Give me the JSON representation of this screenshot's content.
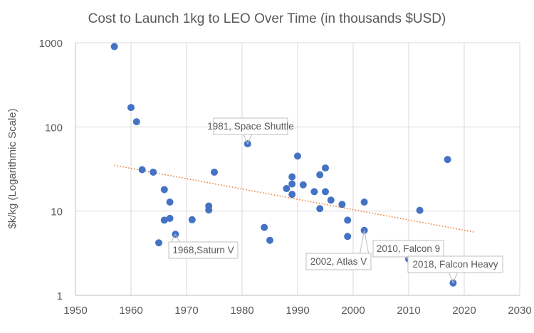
{
  "chart_data": {
    "type": "scatter",
    "title": "Cost to Launch 1kg to LEO Over Time (in thousands $USD)",
    "xlabel": "",
    "ylabel": "$k/kg (Logarithmic Scale)",
    "xlim": [
      1950,
      2030
    ],
    "ylim": [
      1,
      1000
    ],
    "yscale": "log",
    "grid": true,
    "x_ticks": [
      "1950",
      "1960",
      "1970",
      "1980",
      "1990",
      "2000",
      "2010",
      "2020",
      "2030"
    ],
    "y_ticks": [
      "1000",
      "100",
      "10",
      "1"
    ],
    "points": [
      {
        "x": 1957,
        "y": 900
      },
      {
        "x": 1960,
        "y": 170
      },
      {
        "x": 1961,
        "y": 115
      },
      {
        "x": 1962,
        "y": 31
      },
      {
        "x": 1964,
        "y": 29
      },
      {
        "x": 1965,
        "y": 4.2
      },
      {
        "x": 1966,
        "y": 18
      },
      {
        "x": 1966,
        "y": 7.8
      },
      {
        "x": 1967,
        "y": 12.8
      },
      {
        "x": 1967,
        "y": 8.2
      },
      {
        "x": 1968,
        "y": 5.3
      },
      {
        "x": 1971,
        "y": 7.9
      },
      {
        "x": 1974,
        "y": 11.5
      },
      {
        "x": 1974,
        "y": 10.3
      },
      {
        "x": 1975,
        "y": 29
      },
      {
        "x": 1981,
        "y": 63
      },
      {
        "x": 1984,
        "y": 6.4
      },
      {
        "x": 1985,
        "y": 4.5
      },
      {
        "x": 1988,
        "y": 18.5
      },
      {
        "x": 1989,
        "y": 25.5
      },
      {
        "x": 1989,
        "y": 21
      },
      {
        "x": 1989,
        "y": 15.8
      },
      {
        "x": 1990,
        "y": 45
      },
      {
        "x": 1991,
        "y": 20.5
      },
      {
        "x": 1993,
        "y": 17
      },
      {
        "x": 1994,
        "y": 27
      },
      {
        "x": 1994,
        "y": 10.7
      },
      {
        "x": 1995,
        "y": 32.5
      },
      {
        "x": 1995,
        "y": 17
      },
      {
        "x": 1996,
        "y": 13.5
      },
      {
        "x": 1998,
        "y": 12
      },
      {
        "x": 1999,
        "y": 7.8
      },
      {
        "x": 1999,
        "y": 5.0
      },
      {
        "x": 2002,
        "y": 12.8
      },
      {
        "x": 2002,
        "y": 5.9
      },
      {
        "x": 2010,
        "y": 2.7
      },
      {
        "x": 2012,
        "y": 10.2
      },
      {
        "x": 2017,
        "y": 41
      },
      {
        "x": 2018,
        "y": 1.4
      }
    ],
    "trendline": {
      "type": "exponential",
      "x": [
        1957,
        2022
      ],
      "y": [
        35,
        5.6
      ],
      "color": "#ED7D31"
    },
    "annotations": [
      {
        "text": "1981, Space Shuttle",
        "x": 1981,
        "y": 63
      },
      {
        "text": "1968,Saturn V",
        "x": 1968,
        "y": 5.3
      },
      {
        "text": "2002, Atlas V",
        "x": 2002,
        "y": 5.9
      },
      {
        "text": "2010, Falcon 9",
        "x": 2010,
        "y": 2.7
      },
      {
        "text": "2018, Falcon Heavy",
        "x": 2018,
        "y": 1.4
      }
    ],
    "point_color": "#4472C4"
  }
}
